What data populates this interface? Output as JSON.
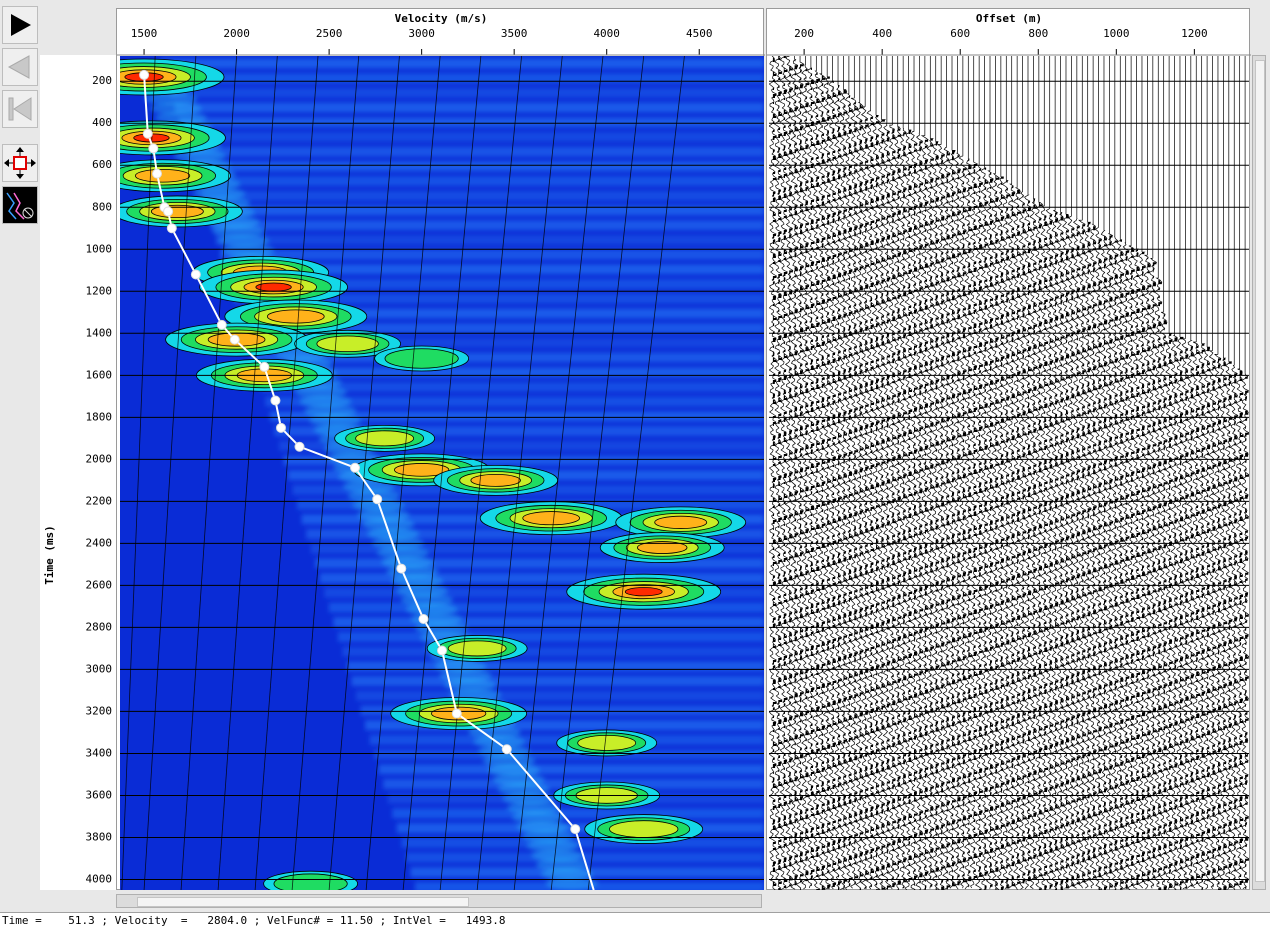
{
  "toolbar": {
    "play_icon": "play-triangle-icon",
    "prev_icon": "step-back-icon",
    "first_icon": "skip-to-start-icon",
    "pan_icon": "pan-move-icon",
    "velocity_tool_icon": "velocity-pick-icon"
  },
  "status": {
    "time_label": "Time =",
    "time_value": "51.3",
    "velocity_label": "Velocity  =",
    "velocity_value": "2804.0",
    "velfunc_label": "VelFunc# =",
    "velfunc_value": "11.50",
    "intvel_label": "IntVel =",
    "intvel_value": "1493.8"
  },
  "colors": {
    "background": "#0a2cd6",
    "pick_line": "#ffffff",
    "contour": "#000000",
    "hot": "#ff2a00"
  },
  "chart_data": [
    {
      "type": "heatmap",
      "name_in_ui": "velocity semblance panel",
      "title": "",
      "xlabel": "Velocity (m/s)",
      "ylabel": "Time (ms)",
      "xlim": [
        1370,
        4850
      ],
      "ylim": [
        4050,
        80
      ],
      "x_ticks": [
        1500,
        2000,
        2500,
        3000,
        3500,
        4000,
        4500
      ],
      "y_ticks": [
        200,
        400,
        600,
        800,
        1000,
        1200,
        1400,
        1600,
        1800,
        2000,
        2200,
        2400,
        2600,
        2800,
        3000,
        3200,
        3400,
        3600,
        3800,
        4000
      ],
      "grid": true,
      "picks": {
        "x": [
          1500,
          1520,
          1550,
          1570,
          1610,
          1630,
          1650,
          1780,
          1920,
          1990,
          2150,
          2210,
          2240,
          2340,
          2640,
          2760,
          2890,
          3010,
          3110,
          3190,
          3460,
          3830,
          3930
        ],
        "y": [
          170,
          450,
          520,
          640,
          800,
          820,
          900,
          1120,
          1360,
          1430,
          1560,
          1720,
          1850,
          1940,
          2040,
          2190,
          2520,
          2760,
          2910,
          3210,
          3380,
          3760,
          4050
        ]
      },
      "semblance_peaks": [
        {
          "v": 1500,
          "t": 180,
          "level": 1.0
        },
        {
          "v": 1540,
          "t": 470,
          "level": 0.9
        },
        {
          "v": 1600,
          "t": 650,
          "level": 0.8
        },
        {
          "v": 1680,
          "t": 820,
          "level": 0.75
        },
        {
          "v": 2130,
          "t": 1110,
          "level": 0.8
        },
        {
          "v": 2200,
          "t": 1180,
          "level": 0.9
        },
        {
          "v": 2320,
          "t": 1320,
          "level": 0.85
        },
        {
          "v": 2000,
          "t": 1430,
          "level": 0.85
        },
        {
          "v": 2150,
          "t": 1600,
          "level": 0.8
        },
        {
          "v": 2600,
          "t": 1450,
          "level": 0.55
        },
        {
          "v": 3000,
          "t": 1520,
          "level": 0.45
        },
        {
          "v": 2800,
          "t": 1900,
          "level": 0.5
        },
        {
          "v": 3000,
          "t": 2050,
          "level": 0.8
        },
        {
          "v": 3400,
          "t": 2100,
          "level": 0.7
        },
        {
          "v": 3700,
          "t": 2280,
          "level": 0.85
        },
        {
          "v": 4400,
          "t": 2300,
          "level": 0.75
        },
        {
          "v": 4300,
          "t": 2420,
          "level": 0.7
        },
        {
          "v": 4200,
          "t": 2630,
          "level": 0.95
        },
        {
          "v": 3300,
          "t": 2900,
          "level": 0.5
        },
        {
          "v": 3200,
          "t": 3210,
          "level": 0.8
        },
        {
          "v": 4000,
          "t": 3350,
          "level": 0.5
        },
        {
          "v": 4000,
          "t": 3600,
          "level": 0.55
        },
        {
          "v": 4200,
          "t": 3760,
          "level": 0.65
        },
        {
          "v": 2400,
          "t": 4020,
          "level": 0.45
        }
      ],
      "constant_moveout_lines": 14
    },
    {
      "type": "line",
      "name_in_ui": "CMP gather wiggle traces",
      "title": "",
      "xlabel": "Offset (m)",
      "ylabel": "",
      "xlim": [
        110,
        1340
      ],
      "x_ticks": [
        200,
        400,
        600,
        800,
        1000,
        1200
      ],
      "trace_count": 88,
      "mute": {
        "offset": [
          150,
          260,
          410,
          500,
          600,
          700,
          820,
          940,
          1100,
          1130,
          1220,
          1340
        ],
        "time": [
          70,
          180,
          400,
          450,
          550,
          650,
          800,
          880,
          1050,
          1400,
          1450,
          1600
        ]
      }
    }
  ]
}
